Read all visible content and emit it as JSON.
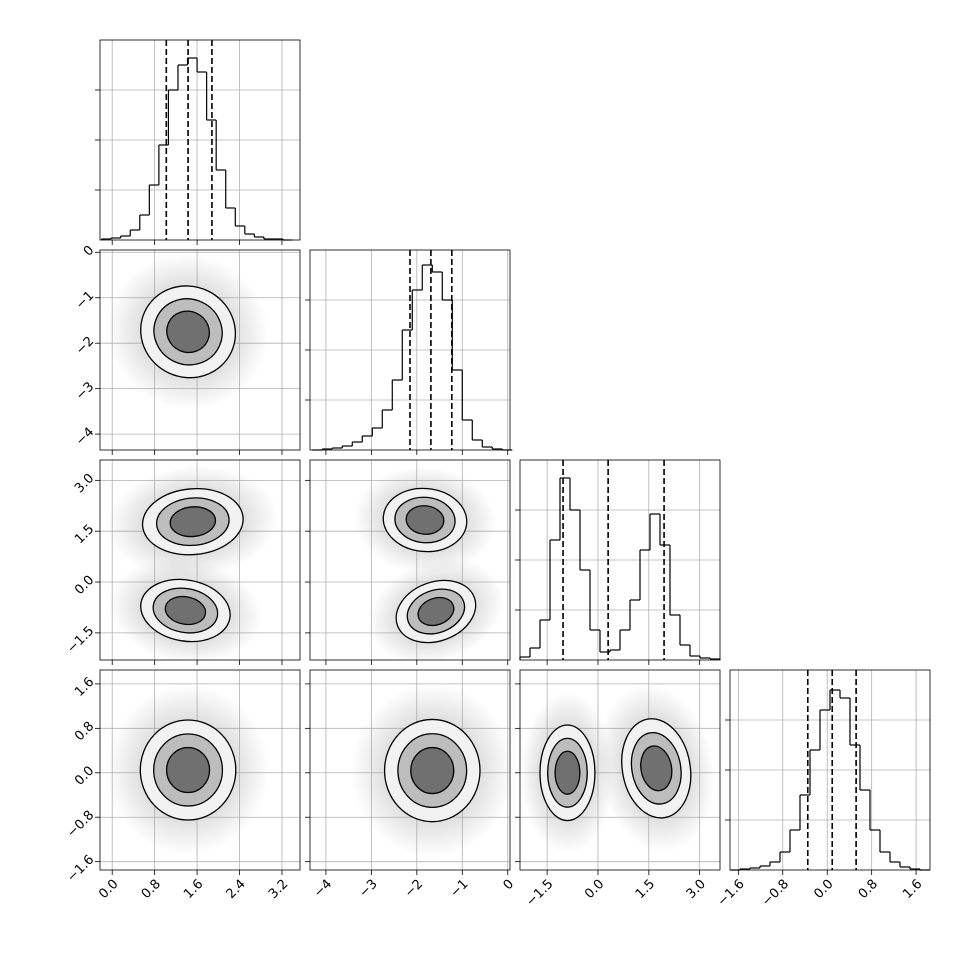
{
  "chart_data": {
    "type": "corner",
    "grid": true,
    "line_color": "#000000",
    "fill_colors": [
      "#f2f2f2",
      "#bdbdbd",
      "#707070"
    ],
    "halo_color": "#9a9a9a",
    "contour_levels": [
      1,
      0.72,
      0.45
    ],
    "hist_ylim": [
      0,
      200
    ],
    "hist_yticks": [
      50,
      100,
      150
    ],
    "parameters": [
      {
        "lim": [
          -0.23,
          3.54
        ],
        "ticks": [
          {
            "value": 0,
            "label": "0.0"
          },
          0.8,
          1.6,
          2.4,
          3.2
        ],
        "quantiles": [
          1.02,
          1.43,
          1.88
        ],
        "hist": {
          "bins": [
            -0.2,
            -0.02,
            0.16,
            0.34,
            0.52,
            0.7,
            0.88,
            1.06,
            1.24,
            1.42,
            1.6,
            1.78,
            1.96,
            2.14,
            2.32,
            2.5,
            2.68,
            2.86,
            3.04,
            3.22,
            3.4
          ],
          "counts": [
            1,
            2,
            4,
            10,
            25,
            55,
            95,
            150,
            175,
            182,
            168,
            120,
            70,
            32,
            14,
            6,
            3,
            1,
            1,
            0
          ]
        }
      },
      {
        "lim": [
          -4.35,
          0.05
        ],
        "ticks": [
          {
            "value": -4,
            "label": "−4"
          },
          {
            "value": -3,
            "label": "−3"
          },
          {
            "value": -2,
            "label": "−2"
          },
          {
            "value": -1,
            "label": "−1"
          },
          0
        ],
        "quantiles": [
          -2.15,
          -1.69,
          -1.23
        ],
        "hist": {
          "bins": [
            -4.3,
            -4.08,
            -3.86,
            -3.64,
            -3.42,
            -3.2,
            -2.98,
            -2.76,
            -2.54,
            -2.32,
            -2.1,
            -1.88,
            -1.66,
            -1.44,
            -1.22,
            -1.0,
            -0.78,
            -0.56,
            -0.34,
            -0.12,
            0.1
          ],
          "counts": [
            0,
            1,
            2,
            4,
            8,
            14,
            22,
            40,
            70,
            120,
            160,
            185,
            178,
            150,
            80,
            30,
            10,
            3,
            1,
            0
          ]
        }
      },
      {
        "lim": [
          -2.3,
          3.6
        ],
        "ticks": [
          {
            "value": -1.5,
            "label": "−1.5"
          },
          {
            "value": 0,
            "label": "0.0"
          },
          1.5,
          {
            "value": 3,
            "label": "3.0"
          }
        ],
        "quantiles": [
          -1.03,
          0.3,
          1.95
        ],
        "hist": {
          "bins": [
            -2.3,
            -2.005,
            -1.71,
            -1.415,
            -1.12,
            -0.825,
            -0.53,
            -0.235,
            0.06,
            0.355,
            0.65,
            0.945,
            1.24,
            1.535,
            1.83,
            2.125,
            2.42,
            2.715,
            3.01,
            3.305,
            3.6
          ],
          "counts": [
            3,
            12,
            40,
            120,
            182,
            150,
            90,
            30,
            8,
            10,
            30,
            60,
            110,
            146,
            115,
            45,
            15,
            4,
            2,
            1
          ]
        }
      },
      {
        "lim": [
          -1.75,
          1.85
        ],
        "ticks": [
          {
            "value": -1.6,
            "label": "−1.6"
          },
          {
            "value": -0.8,
            "label": "−0.8"
          },
          {
            "value": 0,
            "label": "0.0"
          },
          0.8,
          1.6
        ],
        "quantiles": [
          -0.35,
          0.09,
          0.52
        ],
        "hist": {
          "bins": [
            -1.75,
            -1.57,
            -1.39,
            -1.21,
            -1.03,
            -0.85,
            -0.67,
            -0.49,
            -0.31,
            -0.13,
            0.05,
            0.23,
            0.41,
            0.59,
            0.77,
            0.95,
            1.13,
            1.31,
            1.49,
            1.67,
            1.85
          ],
          "counts": [
            0,
            1,
            2,
            4,
            8,
            18,
            40,
            75,
            120,
            160,
            180,
            172,
            125,
            80,
            40,
            18,
            8,
            3,
            1,
            0
          ]
        }
      }
    ],
    "pairs": [
      {
        "x": 0,
        "y": 1,
        "blobs": [
          {
            "center": [
              1.43,
              -1.75
            ],
            "radii": [
              0.9,
              1.0
            ],
            "rotation": 25
          }
        ]
      },
      {
        "x": 0,
        "y": 2,
        "blobs": [
          {
            "center": [
              1.52,
              1.78
            ],
            "radii": [
              0.95,
              0.97
            ],
            "rotation": -5
          },
          {
            "center": [
              1.38,
              -0.84
            ],
            "radii": [
              0.85,
              0.9
            ],
            "rotation": 10
          }
        ]
      },
      {
        "x": 1,
        "y": 2,
        "blobs": [
          {
            "center": [
              -1.82,
              1.83
            ],
            "radii": [
              0.92,
              0.93
            ],
            "rotation": 5
          },
          {
            "center": [
              -1.58,
              -0.87
            ],
            "radii": [
              0.9,
              0.87
            ],
            "rotation": -20
          }
        ]
      },
      {
        "x": 0,
        "y": 3,
        "blobs": [
          {
            "center": [
              1.43,
              0.05
            ],
            "radii": [
              0.9,
              0.9
            ],
            "rotation": 0
          }
        ]
      },
      {
        "x": 1,
        "y": 3,
        "blobs": [
          {
            "center": [
              -1.66,
              0.04
            ],
            "radii": [
              1.05,
              0.92
            ],
            "rotation": 0
          }
        ]
      },
      {
        "x": 2,
        "y": 3,
        "blobs": [
          {
            "center": [
              -0.9,
              0.0
            ],
            "radii": [
              0.81,
              0.86
            ],
            "rotation": 0
          },
          {
            "center": [
              1.72,
              0.08
            ],
            "radii": [
              1.0,
              0.9
            ],
            "rotation": -10
          }
        ]
      }
    ]
  }
}
